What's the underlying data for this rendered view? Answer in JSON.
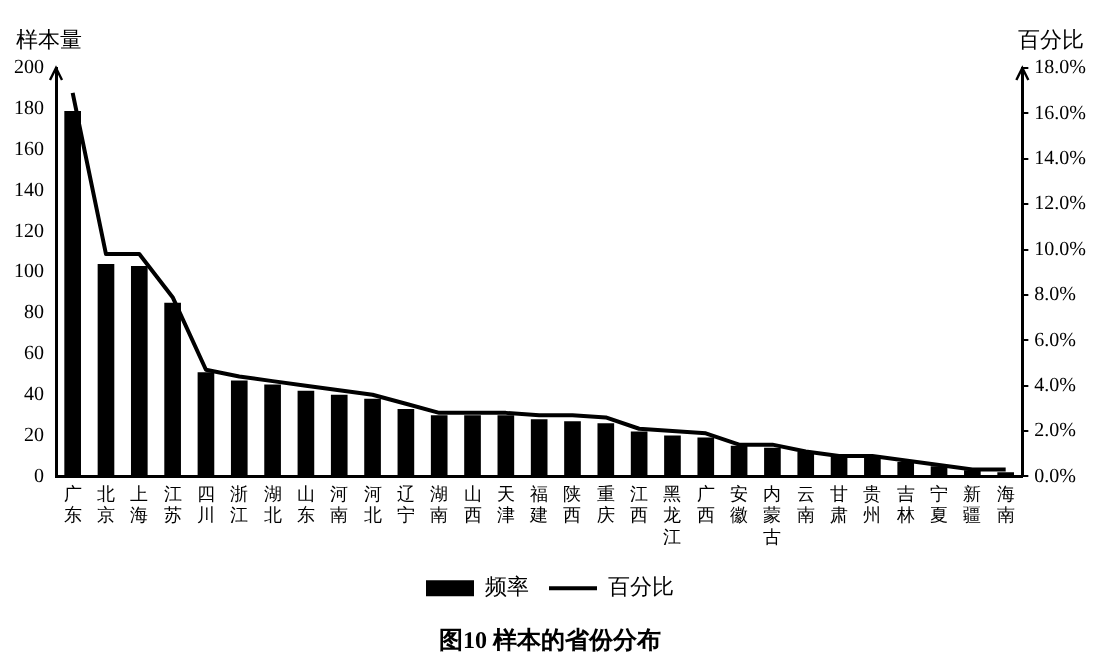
{
  "chart_data": {
    "type": "bar",
    "title": "图10 样本的省份分布",
    "ylabel": "样本量",
    "y2label": "百分比",
    "categories": [
      "广东",
      "北京",
      "上海",
      "江苏",
      "四川",
      "浙江",
      "湖北",
      "山东",
      "河南",
      "河北",
      "辽宁",
      "湖南",
      "山西",
      "天津",
      "福建",
      "陕西",
      "重庆",
      "江西",
      "黑龙江",
      "广西",
      "安徽",
      "内蒙古",
      "云南",
      "甘肃",
      "贵州",
      "吉林",
      "宁夏",
      "新疆",
      "海南"
    ],
    "series": [
      {
        "name": "频率",
        "color": "#000000",
        "values": [
          179,
          104,
          103,
          85,
          51,
          47,
          45,
          42,
          40,
          38,
          33,
          30,
          30,
          30,
          28,
          27,
          26,
          22,
          20,
          19,
          15,
          14,
          12,
          10,
          9,
          7,
          5,
          3,
          2
        ]
      },
      {
        "name": "百分比",
        "type": "line",
        "axis": "y2",
        "color": "#000000",
        "values": [
          16.9,
          9.8,
          9.8,
          7.9,
          4.7,
          4.4,
          4.2,
          4.0,
          3.8,
          3.6,
          3.2,
          2.8,
          2.8,
          2.8,
          2.7,
          2.7,
          2.6,
          2.1,
          2.0,
          1.9,
          1.4,
          1.4,
          1.1,
          0.9,
          0.9,
          0.7,
          0.5,
          0.3,
          0.3
        ]
      }
    ],
    "ylim": [
      0,
      200
    ],
    "yticks": [
      0,
      20,
      40,
      60,
      80,
      100,
      120,
      140,
      160,
      180,
      200
    ],
    "y2lim": [
      0,
      18
    ],
    "y2ticks": [
      {
        "value": 0,
        "label": "0.0%"
      },
      {
        "value": 2,
        "label": "2.0%"
      },
      {
        "value": 4,
        "label": "4.0%"
      },
      {
        "value": 6,
        "label": "6.0%"
      },
      {
        "value": 8,
        "label": "8.0%"
      },
      {
        "value": 10,
        "label": "10.0%"
      },
      {
        "value": 12,
        "label": "12.0%"
      },
      {
        "value": 14,
        "label": "14.0%"
      },
      {
        "value": 16,
        "label": "16.0%"
      },
      {
        "value": 18,
        "label": "18.0%"
      }
    ],
    "grid": false,
    "legend": "bottom",
    "marker": "none"
  }
}
